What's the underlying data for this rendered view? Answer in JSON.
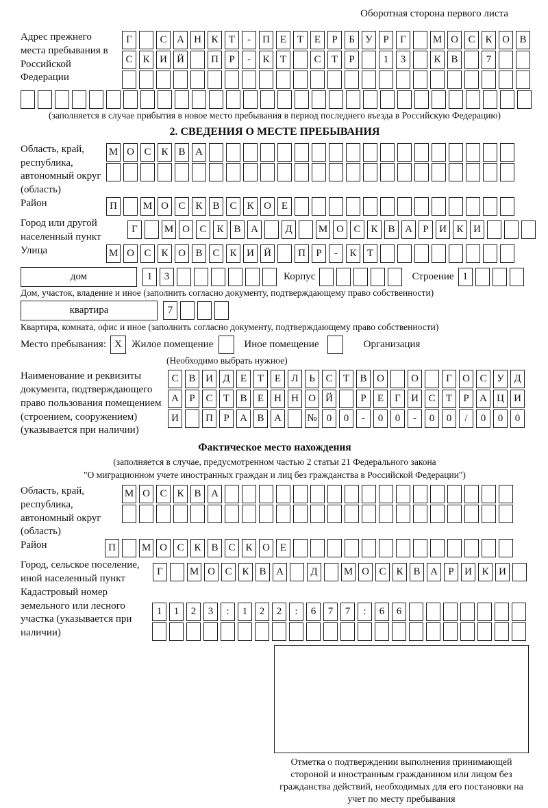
{
  "page": {
    "top_note": "Оборотная сторона первого листа"
  },
  "prev_address": {
    "label": "Адрес прежнего места пребывания в Российской Федерации",
    "row1": {
      "len": 24,
      "text": "Г САНКТ-ПЕТЕРБУРГ МОСКОВ"
    },
    "row2": {
      "len": 24,
      "text": "СКИЙ ПР-КТ СТР 13 КВ 7"
    },
    "row3": {
      "len": 24,
      "text": ""
    },
    "row4": {
      "len": 30,
      "text": ""
    },
    "note": "(заполняется в случае прибытия в новое место пребывания в период последнего въезда в Российскую Федерацию)"
  },
  "section2": {
    "title": "2. СВЕДЕНИЯ О МЕСТЕ ПРЕБЫВАНИЯ",
    "oblast": {
      "label": "Область, край, республика, автономный округ (область)",
      "row1": {
        "len": 24,
        "text": "МОСКВА"
      },
      "row2": {
        "len": 24,
        "text": ""
      }
    },
    "raion": {
      "label": "Район",
      "row": {
        "len": 24,
        "text": "П МОСКВСКОЕ"
      }
    },
    "gorod": {
      "label": "Город или другой населенный пункт",
      "row": {
        "len": 24,
        "text": "Г МОСКВА Д МОСКВАРИКИ"
      }
    },
    "ulitsa": {
      "label": "Улица",
      "row": {
        "len": 24,
        "text": "МОСКОВСКИЙ ПР-КТ"
      }
    },
    "dom": {
      "box_label": "дом",
      "row": {
        "len": 8,
        "text": "13"
      },
      "korpus_label": "Корпус",
      "korpus_row": {
        "len": 5,
        "text": ""
      },
      "stroenie_label": "Строение",
      "stroenie_row": {
        "len": 4,
        "text": "1"
      },
      "note": "Дом, участок, владение и иное (заполнить согласно документу, подтверждающему право собственности)"
    },
    "kvartira": {
      "box_label": "квартира",
      "row": {
        "len": 4,
        "text": "7"
      },
      "note": "Квартира, комната, офис и иное (заполнить согласно документу, подтверждающему право собственности)"
    },
    "mesto": {
      "label": "Место пребывания:",
      "options": [
        {
          "mark": "X",
          "label": "Жилое помещение"
        },
        {
          "mark": "",
          "label": "Иное помещение"
        },
        {
          "mark": "",
          "label": "Организация"
        }
      ],
      "note": "(Необходимо выбрать нужное)"
    },
    "document": {
      "label": "Наименование и реквизиты документа, подтверждающего право пользования помещением (строением, сооружением) (указывается при наличии)",
      "row1": {
        "len": 21,
        "text": "СВИДЕТЕЛЬСТВО О ГОСУД"
      },
      "row2": {
        "len": 21,
        "text": "АРСТВЕННОЙ РЕГИСТРАЦИ"
      },
      "row3": {
        "len": 21,
        "text": "И ПРАВА №00-00-00/000"
      }
    }
  },
  "fact": {
    "title": "Фактическое место нахождения",
    "note1": "(заполняется в случае, предусмотренном частью 2 статьи 21 Федерального закона",
    "note2": "\"О миграционном учете иностранных граждан и лиц без гражданства в Российской Федерации\")",
    "oblast": {
      "label": "Область, край, республика, автономный округ (область)",
      "row1": {
        "len": 23,
        "text": "МОСКВА"
      },
      "row2": {
        "len": 23,
        "text": ""
      }
    },
    "raion": {
      "label": "Район",
      "row": {
        "len": 24,
        "text": "П МОСКВСКОЕ"
      }
    },
    "gorod": {
      "label": "Город, сельское поселение, иной населенный пункт",
      "row": {
        "len": 22,
        "text": "Г МОСКВА Д МОСКВАРИКИ"
      }
    },
    "kadastr": {
      "label": "Кадастровый номер земельного или лесного участка (указывается при наличии)",
      "row1": {
        "len": 22,
        "text": "1123:122:677:66"
      },
      "row2": {
        "len": 22,
        "text": ""
      }
    },
    "stamp_caption": "Отметка о подтверждении выполнения принимающей стороной и иностранным гражданином или лицом без гражданства действий, необходимых для его постановки на учет по месту пребывания"
  }
}
